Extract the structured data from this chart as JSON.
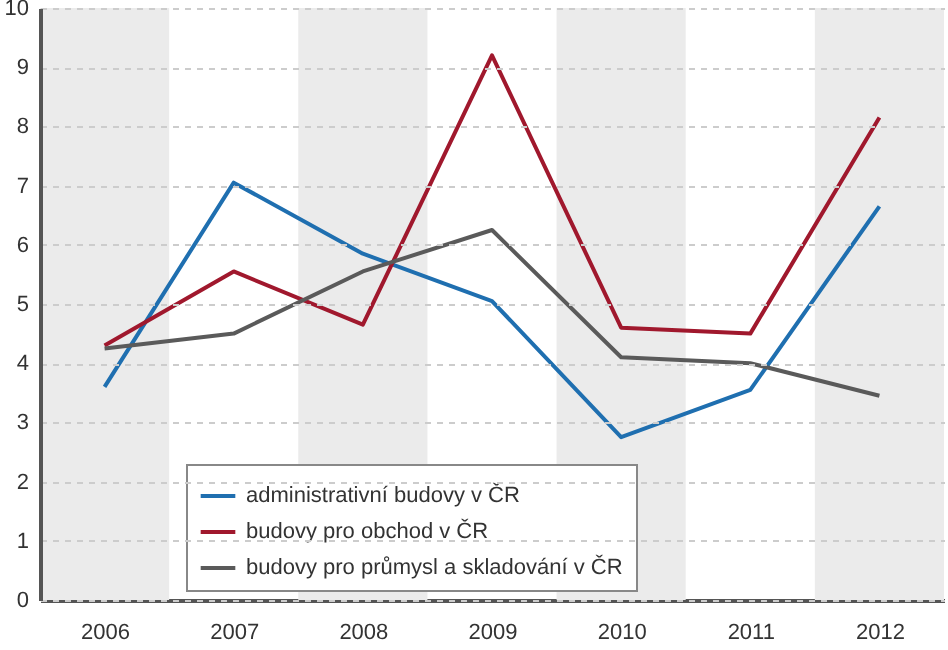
{
  "chart_data": {
    "type": "line",
    "x": [
      2006,
      2007,
      2008,
      2009,
      2010,
      2011,
      2012
    ],
    "xlim": [
      2005.5,
      2012.5
    ],
    "xticks": [
      2006,
      2007,
      2008,
      2009,
      2010,
      2011,
      2012
    ],
    "ylim": [
      0,
      10
    ],
    "yticks": [
      0,
      1,
      2,
      3,
      4,
      5,
      6,
      7,
      8,
      9,
      10
    ],
    "grid": "y",
    "legend": "bottom",
    "bands": [
      {
        "axis": "x",
        "from": 2005.5,
        "to": 2006.5,
        "color": "#ebebeb"
      },
      {
        "axis": "x",
        "from": 2007.5,
        "to": 2008.5,
        "color": "#ebebeb"
      },
      {
        "axis": "x",
        "from": 2009.5,
        "to": 2010.5,
        "color": "#ebebeb"
      },
      {
        "axis": "x",
        "from": 2011.5,
        "to": 2012.5,
        "color": "#ebebeb"
      }
    ],
    "series": [
      {
        "name": "administrativní budovy v ČR",
        "color": "#1f6fb0",
        "values": [
          3.6,
          7.05,
          5.85,
          5.05,
          2.75,
          3.55,
          6.65
        ]
      },
      {
        "name": "budovy pro obchod v ČR",
        "color": "#a0182d",
        "values": [
          4.3,
          5.55,
          4.65,
          9.2,
          4.6,
          4.5,
          8.15
        ]
      },
      {
        "name": "budovy pro průmysl a skladování v ČR",
        "color": "#5a5a5a",
        "values": [
          4.25,
          4.5,
          5.55,
          6.25,
          4.1,
          4.0,
          3.45
        ]
      }
    ]
  }
}
